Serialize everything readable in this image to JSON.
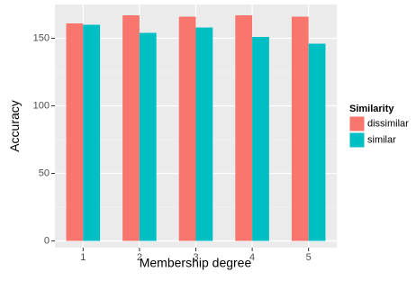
{
  "chart_data": {
    "type": "bar",
    "title": "",
    "xlabel": "Membership degree",
    "ylabel": "Accuracy",
    "categories": [
      "1",
      "2",
      "3",
      "4",
      "5"
    ],
    "series": [
      {
        "name": "dissimilar",
        "color": "#F8766D",
        "values": [
          161,
          167,
          166,
          167,
          166
        ]
      },
      {
        "name": "similar",
        "color": "#00BFC4",
        "values": [
          160,
          154,
          158,
          151,
          146
        ]
      }
    ],
    "ylim": [
      -5,
      175
    ],
    "yticks": [
      0,
      50,
      100,
      150
    ],
    "ytick_labels": [
      "0",
      "50",
      "100",
      "150"
    ],
    "grid": true,
    "legend": {
      "title": "Similarity",
      "position": "right"
    }
  }
}
